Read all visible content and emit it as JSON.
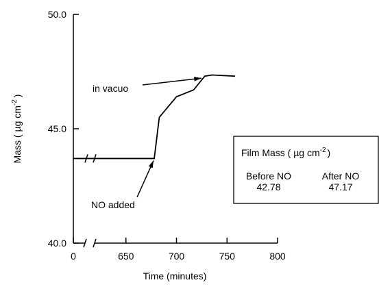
{
  "chart_data": {
    "type": "line",
    "x_label": "Time (minutes)",
    "y_label": {
      "text": "Mass ( µg cm",
      "sup": "-2",
      "end": ")"
    },
    "x": [
      0,
      678,
      683,
      700,
      717,
      728,
      735,
      758
    ],
    "series": [
      {
        "color": "#000000",
        "values": [
          43.7,
          43.7,
          45.5,
          46.4,
          46.7,
          47.3,
          47.35,
          47.3
        ]
      }
    ],
    "xlim": [
      600,
      800
    ],
    "axis_break": true,
    "xticks": [
      0,
      650,
      700,
      750,
      800
    ],
    "ylim": [
      40,
      50
    ],
    "yticks": [
      {
        "value": 40,
        "label": "40.0"
      },
      {
        "value": 45,
        "label": "45.0"
      },
      {
        "value": 50,
        "label": "50.0"
      }
    ],
    "annotations": [
      {
        "text": "in vacuo",
        "x": 726,
        "y": 47.3
      },
      {
        "text": "NO added",
        "x": 678,
        "y": 43.7
      }
    ],
    "inset": {
      "title": {
        "text": "Film Mass ( µg cm",
        "sup": "-2",
        "end": ")"
      },
      "columns": [
        {
          "label": "Before NO",
          "value": 42.78
        },
        {
          "label": "After NO",
          "value": 47.17
        }
      ]
    }
  }
}
